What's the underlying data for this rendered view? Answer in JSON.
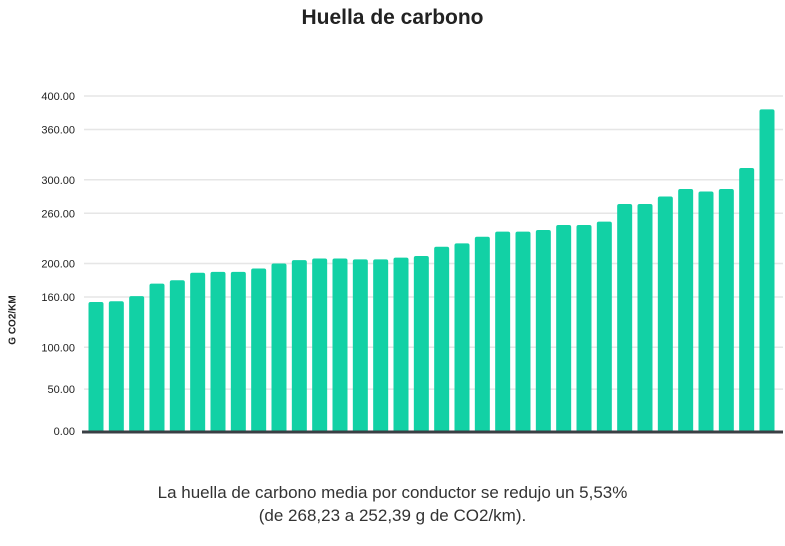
{
  "chart_data": {
    "type": "bar",
    "title": "Huella de carbono",
    "ylabel": "G CO2/KM",
    "xlabel": "",
    "ylim": [
      0,
      400
    ],
    "yticks": [
      0,
      50,
      100,
      160,
      200,
      260,
      300,
      360,
      400
    ],
    "ytick_labels": [
      "0.00",
      "50.00",
      "100.00",
      "160.00",
      "200.00",
      "260.00",
      "300.00",
      "360.00",
      "400.00"
    ],
    "grid": true,
    "bar_color": "#12d1a5",
    "values": [
      154,
      155,
      161,
      176,
      180,
      189,
      190,
      190,
      194,
      200,
      204,
      206,
      206,
      205,
      205,
      207,
      209,
      220,
      224,
      232,
      238,
      238,
      240,
      246,
      246,
      250,
      271,
      271,
      280,
      289,
      286,
      289,
      314,
      384
    ]
  },
  "caption": {
    "line1": "La huella de carbono media por conductor se redujo un 5,53%",
    "line2": "(de 268,23 a 252,39 g de CO2/km)."
  }
}
